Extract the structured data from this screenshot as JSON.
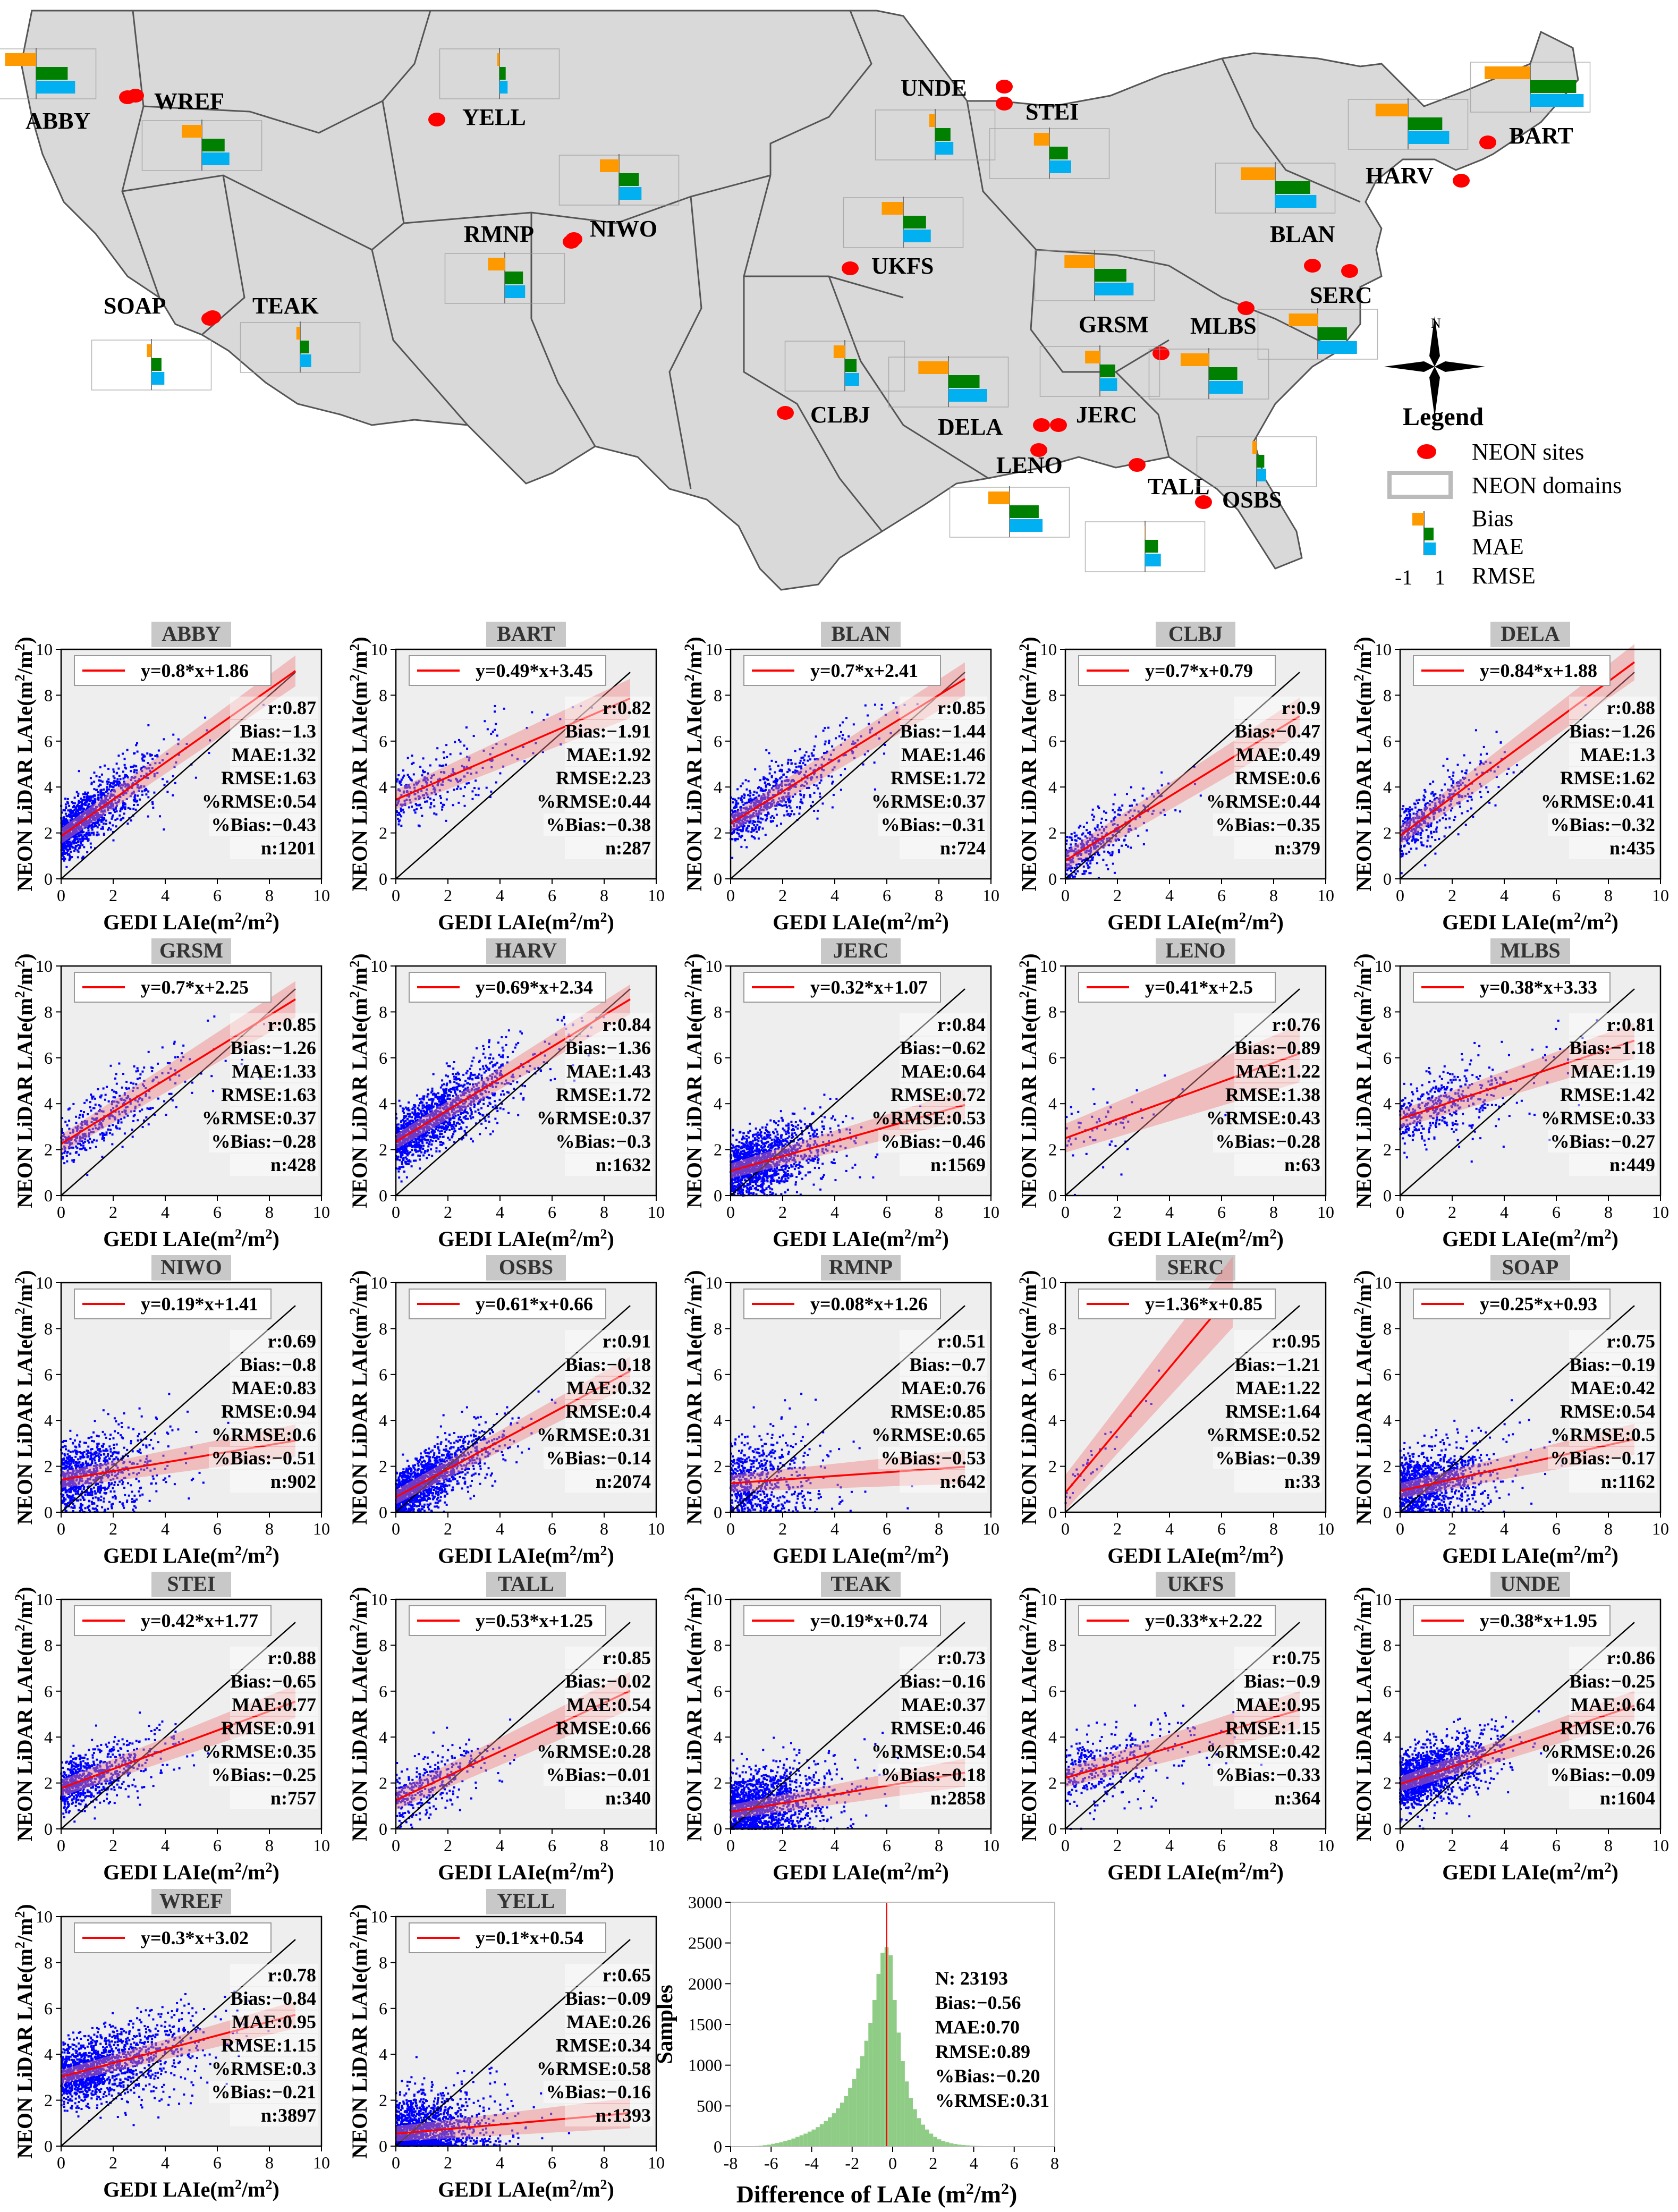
{
  "map": {
    "legend_title": "Legend",
    "legend_items": [
      "NEON sites",
      "NEON domains",
      "Bias",
      "MAE",
      "RMSE"
    ],
    "legend_scale": [
      "-1",
      "1"
    ],
    "north_label": "N",
    "colors": {
      "land": "#d9d9d9",
      "border": "#555555",
      "site": "#ff0000",
      "bias": "#ff9900",
      "mae": "#008000",
      "rmse": "#00b0f0"
    },
    "sites": [
      {
        "name": "ABBY",
        "bias": -1.3,
        "mae": 1.32,
        "rmse": 1.63
      },
      {
        "name": "WREF",
        "bias": -0.84,
        "mae": 0.95,
        "rmse": 1.15
      },
      {
        "name": "YELL",
        "bias": -0.09,
        "mae": 0.26,
        "rmse": 0.34
      },
      {
        "name": "UNDE",
        "bias": -0.25,
        "mae": 0.64,
        "rmse": 0.76
      },
      {
        "name": "STEI",
        "bias": -0.65,
        "mae": 0.77,
        "rmse": 0.91
      },
      {
        "name": "BART",
        "bias": -1.91,
        "mae": 1.92,
        "rmse": 2.23
      },
      {
        "name": "HARV",
        "bias": -1.36,
        "mae": 1.43,
        "rmse": 1.72
      },
      {
        "name": "RMNP",
        "bias": -0.7,
        "mae": 0.76,
        "rmse": 0.85
      },
      {
        "name": "NIWO",
        "bias": -0.8,
        "mae": 0.83,
        "rmse": 0.94
      },
      {
        "name": "UKFS",
        "bias": -0.9,
        "mae": 0.95,
        "rmse": 1.15
      },
      {
        "name": "BLAN",
        "bias": -1.44,
        "mae": 1.46,
        "rmse": 1.72
      },
      {
        "name": "SOAP",
        "bias": -0.19,
        "mae": 0.42,
        "rmse": 0.54
      },
      {
        "name": "TEAK",
        "bias": -0.16,
        "mae": 0.37,
        "rmse": 0.46
      },
      {
        "name": "SERC",
        "bias": -1.21,
        "mae": 1.22,
        "rmse": 1.64
      },
      {
        "name": "GRSM",
        "bias": -1.26,
        "mae": 1.33,
        "rmse": 1.63
      },
      {
        "name": "MLBS",
        "bias": -1.18,
        "mae": 1.19,
        "rmse": 1.42
      },
      {
        "name": "CLBJ",
        "bias": -0.47,
        "mae": 0.49,
        "rmse": 0.6
      },
      {
        "name": "DELA",
        "bias": -1.26,
        "mae": 1.3,
        "rmse": 1.62
      },
      {
        "name": "JERC",
        "bias": -0.62,
        "mae": 0.64,
        "rmse": 0.72
      },
      {
        "name": "LENO",
        "bias": -0.89,
        "mae": 1.22,
        "rmse": 1.38
      },
      {
        "name": "TALL",
        "bias": -0.02,
        "mae": 0.54,
        "rmse": 0.66
      },
      {
        "name": "OSBS",
        "bias": -0.18,
        "mae": 0.32,
        "rmse": 0.4
      }
    ]
  },
  "chart_data": [
    {
      "type": "scatter",
      "title": "ABBY",
      "xlabel": "GEDI LAIe(m²/m²)",
      "ylabel": "NEON LiDAR LAIe(m²/m²)",
      "xlim": [
        0,
        10
      ],
      "ylim": [
        0,
        10
      ],
      "equation": "y=0.8*x+1.86",
      "slope": 0.8,
      "intercept": 1.86,
      "stats": [
        "r:0.87",
        "Bias:−1.3",
        "MAE:1.32",
        "RMSE:1.63",
        "%RMSE:0.54",
        "%Bias:−0.43",
        "n:1201"
      ],
      "n": 1201,
      "r": 0.87
    },
    {
      "type": "scatter",
      "title": "BART",
      "xlabel": "GEDI LAIe(m²/m²)",
      "ylabel": "NEON LiDAR LAIe(m²/m²)",
      "xlim": [
        0,
        10
      ],
      "ylim": [
        0,
        10
      ],
      "equation": "y=0.49*x+3.45",
      "slope": 0.49,
      "intercept": 3.45,
      "stats": [
        "r:0.82",
        "Bias:−1.91",
        "MAE:1.92",
        "RMSE:2.23",
        "%RMSE:0.44",
        "%Bias:−0.38",
        "n:287"
      ],
      "n": 287,
      "r": 0.82
    },
    {
      "type": "scatter",
      "title": "BLAN",
      "xlabel": "GEDI LAIe(m²/m²)",
      "ylabel": "NEON LiDAR LAIe(m²/m²)",
      "xlim": [
        0,
        10
      ],
      "ylim": [
        0,
        10
      ],
      "equation": "y=0.7*x+2.41",
      "slope": 0.7,
      "intercept": 2.41,
      "stats": [
        "r:0.85",
        "Bias:−1.44",
        "MAE:1.46",
        "RMSE:1.72",
        "%RMSE:0.37",
        "%Bias:−0.31",
        "n:724"
      ],
      "n": 724,
      "r": 0.85
    },
    {
      "type": "scatter",
      "title": "CLBJ",
      "xlabel": "GEDI LAIe(m²/m²)",
      "ylabel": "NEON LiDAR LAIe(m²/m²)",
      "xlim": [
        0,
        10
      ],
      "ylim": [
        0,
        10
      ],
      "equation": "y=0.7*x+0.79",
      "slope": 0.7,
      "intercept": 0.79,
      "stats": [
        "r:0.9",
        "Bias:−0.47",
        "MAE:0.49",
        "RMSE:0.6",
        "%RMSE:0.44",
        "%Bias:−0.35",
        "n:379"
      ],
      "n": 379,
      "r": 0.9
    },
    {
      "type": "scatter",
      "title": "DELA",
      "xlabel": "GEDI LAIe(m²/m²)",
      "ylabel": "NEON LiDAR LAIe(m²/m²)",
      "xlim": [
        0,
        10
      ],
      "ylim": [
        0,
        10
      ],
      "equation": "y=0.84*x+1.88",
      "slope": 0.84,
      "intercept": 1.88,
      "stats": [
        "r:0.88",
        "Bias:−1.26",
        "MAE:1.3",
        "RMSE:1.62",
        "%RMSE:0.41",
        "%Bias:−0.32",
        "n:435"
      ],
      "n": 435,
      "r": 0.88
    },
    {
      "type": "scatter",
      "title": "GRSM",
      "xlabel": "GEDI LAIe(m²/m²)",
      "ylabel": "NEON LiDAR LAIe(m²/m²)",
      "xlim": [
        0,
        10
      ],
      "ylim": [
        0,
        10
      ],
      "equation": "y=0.7*x+2.25",
      "slope": 0.7,
      "intercept": 2.25,
      "stats": [
        "r:0.85",
        "Bias:−1.26",
        "MAE:1.33",
        "RMSE:1.63",
        "%RMSE:0.37",
        "%Bias:−0.28",
        "n:428"
      ],
      "n": 428,
      "r": 0.85
    },
    {
      "type": "scatter",
      "title": "HARV",
      "xlabel": "GEDI LAIe(m²/m²)",
      "ylabel": "NEON LiDAR LAIe(m²/m²)",
      "xlim": [
        0,
        10
      ],
      "ylim": [
        0,
        10
      ],
      "equation": "y=0.69*x+2.34",
      "slope": 0.69,
      "intercept": 2.34,
      "stats": [
        "r:0.84",
        "Bias:−1.36",
        "MAE:1.43",
        "RMSE:1.72",
        "%RMSE:0.37",
        "%Bias:−0.3",
        "n:1632"
      ],
      "n": 1632,
      "r": 0.84
    },
    {
      "type": "scatter",
      "title": "JERC",
      "xlabel": "GEDI LAIe(m²/m²)",
      "ylabel": "NEON LiDAR LAIe(m²/m²)",
      "xlim": [
        0,
        10
      ],
      "ylim": [
        0,
        10
      ],
      "equation": "y=0.32*x+1.07",
      "slope": 0.32,
      "intercept": 1.07,
      "stats": [
        "r:0.84",
        "Bias:−0.62",
        "MAE:0.64",
        "RMSE:0.72",
        "%RMSE:0.53",
        "%Bias:−0.46",
        "n:1569"
      ],
      "n": 1569,
      "r": 0.84
    },
    {
      "type": "scatter",
      "title": "LENO",
      "xlabel": "GEDI LAIe(m²/m²)",
      "ylabel": "NEON LiDAR LAIe(m²/m²)",
      "xlim": [
        0,
        10
      ],
      "ylim": [
        0,
        10
      ],
      "equation": "y=0.41*x+2.5",
      "slope": 0.41,
      "intercept": 2.5,
      "stats": [
        "r:0.76",
        "Bias:−0.89",
        "MAE:1.22",
        "RMSE:1.38",
        "%RMSE:0.43",
        "%Bias:−0.28",
        "n:63"
      ],
      "n": 63,
      "r": 0.76
    },
    {
      "type": "scatter",
      "title": "MLBS",
      "xlabel": "GEDI LAIe(m²/m²)",
      "ylabel": "NEON LiDAR LAIe(m²/m²)",
      "xlim": [
        0,
        10
      ],
      "ylim": [
        0,
        10
      ],
      "equation": "y=0.38*x+3.33",
      "slope": 0.38,
      "intercept": 3.33,
      "stats": [
        "r:0.81",
        "Bias:−1.18",
        "MAE:1.19",
        "RMSE:1.42",
        "%RMSE:0.33",
        "%Bias:−0.27",
        "n:449"
      ],
      "n": 449,
      "r": 0.81
    },
    {
      "type": "scatter",
      "title": "NIWO",
      "xlabel": "GEDI LAIe(m²/m²)",
      "ylabel": "NEON LiDAR LAIe(m²/m²)",
      "xlim": [
        0,
        10
      ],
      "ylim": [
        0,
        10
      ],
      "equation": "y=0.19*x+1.41",
      "slope": 0.19,
      "intercept": 1.41,
      "stats": [
        "r:0.69",
        "Bias:−0.8",
        "MAE:0.83",
        "RMSE:0.94",
        "%RMSE:0.6",
        "%Bias:−0.51",
        "n:902"
      ],
      "n": 902,
      "r": 0.69
    },
    {
      "type": "scatter",
      "title": "OSBS",
      "xlabel": "GEDI LAIe(m²/m²)",
      "ylabel": "NEON LiDAR LAIe(m²/m²)",
      "xlim": [
        0,
        10
      ],
      "ylim": [
        0,
        10
      ],
      "equation": "y=0.61*x+0.66",
      "slope": 0.61,
      "intercept": 0.66,
      "stats": [
        "r:0.91",
        "Bias:−0.18",
        "MAE:0.32",
        "RMSE:0.4",
        "%RMSE:0.31",
        "%Bias:−0.14",
        "n:2074"
      ],
      "n": 2074,
      "r": 0.91
    },
    {
      "type": "scatter",
      "title": "RMNP",
      "xlabel": "GEDI LAIe(m²/m²)",
      "ylabel": "NEON LiDAR LAIe(m²/m²)",
      "xlim": [
        0,
        10
      ],
      "ylim": [
        0,
        10
      ],
      "equation": "y=0.08*x+1.26",
      "slope": 0.08,
      "intercept": 1.26,
      "stats": [
        "r:0.51",
        "Bias:−0.7",
        "MAE:0.76",
        "RMSE:0.85",
        "%RMSE:0.65",
        "%Bias:−0.53",
        "n:642"
      ],
      "n": 642,
      "r": 0.51
    },
    {
      "type": "scatter",
      "title": "SERC",
      "xlabel": "GEDI LAIe(m²/m²)",
      "ylabel": "NEON LiDAR LAIe(m²/m²)",
      "xlim": [
        0,
        10
      ],
      "ylim": [
        0,
        10
      ],
      "equation": "y=1.36*x+0.85",
      "slope": 1.36,
      "intercept": 0.85,
      "stats": [
        "r:0.95",
        "Bias:−1.21",
        "MAE:1.22",
        "RMSE:1.64",
        "%RMSE:0.52",
        "%Bias:−0.39",
        "n:33"
      ],
      "n": 33,
      "r": 0.95
    },
    {
      "type": "scatter",
      "title": "SOAP",
      "xlabel": "GEDI LAIe(m²/m²)",
      "ylabel": "NEON LiDAR LAIe(m²/m²)",
      "xlim": [
        0,
        10
      ],
      "ylim": [
        0,
        10
      ],
      "equation": "y=0.25*x+0.93",
      "slope": 0.25,
      "intercept": 0.93,
      "stats": [
        "r:0.75",
        "Bias:−0.19",
        "MAE:0.42",
        "RMSE:0.54",
        "%RMSE:0.5",
        "%Bias:−0.17",
        "n:1162"
      ],
      "n": 1162,
      "r": 0.75
    },
    {
      "type": "scatter",
      "title": "STEI",
      "xlabel": "GEDI LAIe(m²/m²)",
      "ylabel": "NEON LiDAR LAIe(m²/m²)",
      "xlim": [
        0,
        10
      ],
      "ylim": [
        0,
        10
      ],
      "equation": "y=0.42*x+1.77",
      "slope": 0.42,
      "intercept": 1.77,
      "stats": [
        "r:0.88",
        "Bias:−0.65",
        "MAE:0.77",
        "RMSE:0.91",
        "%RMSE:0.35",
        "%Bias:−0.25",
        "n:757"
      ],
      "n": 757,
      "r": 0.88
    },
    {
      "type": "scatter",
      "title": "TALL",
      "xlabel": "GEDI LAIe(m²/m²)",
      "ylabel": "NEON LiDAR LAIe(m²/m²)",
      "xlim": [
        0,
        10
      ],
      "ylim": [
        0,
        10
      ],
      "equation": "y=0.53*x+1.25",
      "slope": 0.53,
      "intercept": 1.25,
      "stats": [
        "r:0.85",
        "Bias:−0.02",
        "MAE:0.54",
        "RMSE:0.66",
        "%RMSE:0.28",
        "%Bias:−0.01",
        "n:340"
      ],
      "n": 340,
      "r": 0.85
    },
    {
      "type": "scatter",
      "title": "TEAK",
      "xlabel": "GEDI LAIe(m²/m²)",
      "ylabel": "NEON LiDAR LAIe(m²/m²)",
      "xlim": [
        0,
        10
      ],
      "ylim": [
        0,
        10
      ],
      "equation": "y=0.19*x+0.74",
      "slope": 0.19,
      "intercept": 0.74,
      "stats": [
        "r:0.73",
        "Bias:−0.16",
        "MAE:0.37",
        "RMSE:0.46",
        "%RMSE:0.54",
        "%Bias:−0.18",
        "n:2858"
      ],
      "n": 2858,
      "r": 0.73
    },
    {
      "type": "scatter",
      "title": "UKFS",
      "xlabel": "GEDI LAIe(m²/m²)",
      "ylabel": "NEON LiDAR LAIe(m²/m²)",
      "xlim": [
        0,
        10
      ],
      "ylim": [
        0,
        10
      ],
      "equation": "y=0.33*x+2.22",
      "slope": 0.33,
      "intercept": 2.22,
      "stats": [
        "r:0.75",
        "Bias:−0.9",
        "MAE:0.95",
        "RMSE:1.15",
        "%RMSE:0.42",
        "%Bias:−0.33",
        "n:364"
      ],
      "n": 364,
      "r": 0.75
    },
    {
      "type": "scatter",
      "title": "UNDE",
      "xlabel": "GEDI LAIe(m²/m²)",
      "ylabel": "NEON LiDAR LAIe(m²/m²)",
      "xlim": [
        0,
        10
      ],
      "ylim": [
        0,
        10
      ],
      "equation": "y=0.38*x+1.95",
      "slope": 0.38,
      "intercept": 1.95,
      "stats": [
        "r:0.86",
        "Bias:−0.25",
        "MAE:0.64",
        "RMSE:0.76",
        "%RMSE:0.26",
        "%Bias:−0.09",
        "n:1604"
      ],
      "n": 1604,
      "r": 0.86
    },
    {
      "type": "scatter",
      "title": "WREF",
      "xlabel": "GEDI LAIe(m²/m²)",
      "ylabel": "NEON LiDAR LAIe(m²/m²)",
      "xlim": [
        0,
        10
      ],
      "ylim": [
        0,
        10
      ],
      "equation": "y=0.3*x+3.02",
      "slope": 0.3,
      "intercept": 3.02,
      "stats": [
        "r:0.78",
        "Bias:−0.84",
        "MAE:0.95",
        "RMSE:1.15",
        "%RMSE:0.3",
        "%Bias:−0.21",
        "n:3897"
      ],
      "n": 3897,
      "r": 0.78
    },
    {
      "type": "scatter",
      "title": "YELL",
      "xlabel": "GEDI LAIe(m²/m²)",
      "ylabel": "NEON LiDAR LAIe(m²/m²)",
      "xlim": [
        0,
        10
      ],
      "ylim": [
        0,
        10
      ],
      "equation": "y=0.1*x+0.54",
      "slope": 0.1,
      "intercept": 0.54,
      "stats": [
        "r:0.65",
        "Bias:−0.09",
        "MAE:0.26",
        "RMSE:0.34",
        "%RMSE:0.58",
        "%Bias:−0.16",
        "n:1393"
      ],
      "n": 1393,
      "r": 0.65
    },
    {
      "type": "histogram",
      "title": "",
      "xlabel": "Difference of LAIe (m²/m²)",
      "ylabel": "Samples",
      "xlim": [
        -8,
        8
      ],
      "ylim": [
        0,
        3000
      ],
      "xticks": [
        -8,
        -6,
        -4,
        -2,
        0,
        2,
        4,
        6,
        8
      ],
      "yticks": [
        0,
        500,
        1000,
        1500,
        2000,
        2500,
        3000
      ],
      "bin_width": 0.2,
      "bin_centers": [
        -6.9,
        -6.7,
        -6.5,
        -6.3,
        -6.1,
        -5.9,
        -5.7,
        -5.5,
        -5.3,
        -5.1,
        -4.9,
        -4.7,
        -4.5,
        -4.3,
        -4.1,
        -3.9,
        -3.7,
        -3.5,
        -3.3,
        -3.1,
        -2.9,
        -2.7,
        -2.5,
        -2.3,
        -2.1,
        -1.9,
        -1.7,
        -1.5,
        -1.3,
        -1.1,
        -0.9,
        -0.7,
        -0.5,
        -0.3,
        -0.1,
        0.1,
        0.3,
        0.5,
        0.7,
        0.9,
        1.1,
        1.3,
        1.5,
        1.7,
        1.9,
        2.1,
        2.3,
        2.5,
        2.7,
        2.9,
        3.1,
        3.3,
        3.5,
        3.7,
        3.9,
        4.1,
        4.3,
        4.5,
        4.7,
        4.9,
        5.1,
        5.3,
        5.5,
        5.7,
        5.9
      ],
      "counts": [
        5,
        8,
        12,
        18,
        25,
        35,
        45,
        55,
        70,
        85,
        100,
        120,
        140,
        160,
        185,
        210,
        240,
        275,
        315,
        360,
        410,
        470,
        540,
        620,
        720,
        830,
        960,
        1110,
        1300,
        1520,
        1800,
        2120,
        2380,
        2450,
        2350,
        1800,
        1400,
        1050,
        800,
        600,
        460,
        350,
        270,
        210,
        160,
        120,
        90,
        70,
        55,
        42,
        32,
        25,
        20,
        16,
        13,
        10,
        8,
        7,
        6,
        5,
        4,
        3,
        3,
        2,
        2
      ],
      "vline": -0.3,
      "stats": [
        "N: 23193",
        "Bias:−0.56",
        "MAE:0.70",
        "RMSE:0.89",
        "%Bias:−0.20",
        "%RMSE:0.31"
      ]
    }
  ]
}
